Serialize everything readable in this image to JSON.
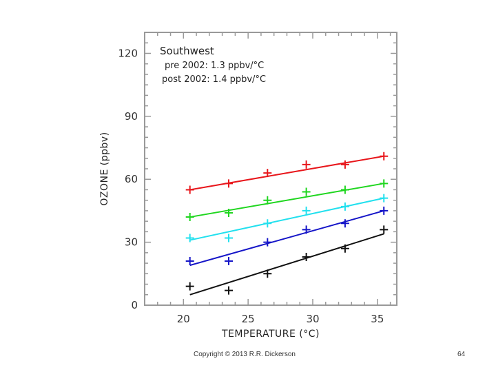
{
  "chart_data": {
    "type": "scatter",
    "title": "Southwest",
    "annotations": [
      "pre 2002: 1.3 ppbv/°C",
      "post 2002: 1.4 ppbv/°C"
    ],
    "xlabel": "TEMPERATURE (°C)",
    "ylabel": "OZONE (ppbv)",
    "xlim": [
      17,
      36.5
    ],
    "ylim": [
      0,
      130
    ],
    "xticks": [
      20,
      25,
      30,
      35
    ],
    "yticks": [
      0,
      30,
      60,
      90,
      120
    ],
    "grid": false,
    "x": [
      20.5,
      23.5,
      26.5,
      29.5,
      32.5,
      35.5
    ],
    "series": [
      {
        "name": "red",
        "color": "#e8161b",
        "values": [
          55,
          58,
          63,
          67,
          67,
          71
        ],
        "fit": [
          55,
          71
        ]
      },
      {
        "name": "green",
        "color": "#1fd61f",
        "values": [
          42,
          44,
          50,
          54,
          55,
          58
        ],
        "fit": [
          42,
          58
        ]
      },
      {
        "name": "cyan",
        "color": "#22e0ee",
        "values": [
          32,
          32,
          39,
          45,
          47,
          51
        ],
        "fit": [
          31,
          51
        ]
      },
      {
        "name": "blue",
        "color": "#1515c8",
        "values": [
          21,
          21,
          30,
          36,
          39,
          45
        ],
        "fit": [
          19,
          45
        ]
      },
      {
        "name": "black",
        "color": "#111111",
        "values": [
          9,
          7,
          15,
          23,
          27,
          36
        ],
        "fit": [
          5,
          34
        ]
      }
    ]
  },
  "footer": {
    "copyright": "Copyright © 2013 R.R. Dickerson",
    "page_number": "64"
  }
}
